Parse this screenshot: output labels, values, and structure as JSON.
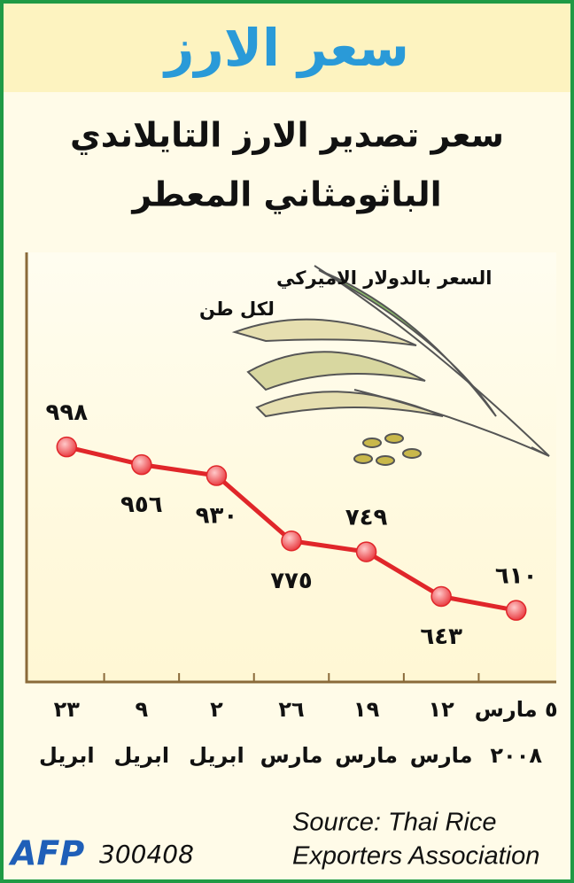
{
  "chart_data": {
    "type": "line",
    "title": "سعر الارز",
    "subtitle": [
      "سعر تصدير الارز التايلاندي",
      "الباثومثاني المعطر"
    ],
    "y_label": [
      "السعر بالدولار الاميركي",
      "لكل طن"
    ],
    "categories": [
      [
        "٢٣",
        "ابريل"
      ],
      [
        "٩",
        "ابريل"
      ],
      [
        "٢",
        "ابريل"
      ],
      [
        "٢٦",
        "مارس"
      ],
      [
        "١٩",
        "مارس"
      ],
      [
        "١٢",
        "مارس"
      ],
      [
        "٥ مارس",
        "٢٠٠٨"
      ]
    ],
    "series": [
      {
        "color": "#e0262a",
        "values": [
          998,
          956,
          930,
          775,
          749,
          643,
          610
        ],
        "value_labels": [
          "٩٩٨",
          "٩٥٦",
          "٩٣٠",
          "٧٧٥",
          "٧٤٩",
          "٦٤٣",
          "٦١٠"
        ]
      }
    ],
    "ylim": [
      440,
      1460
    ],
    "source": [
      "Source: Thai Rice",
      "Exporters Association"
    ],
    "credit": "AFP",
    "code": "300408"
  }
}
